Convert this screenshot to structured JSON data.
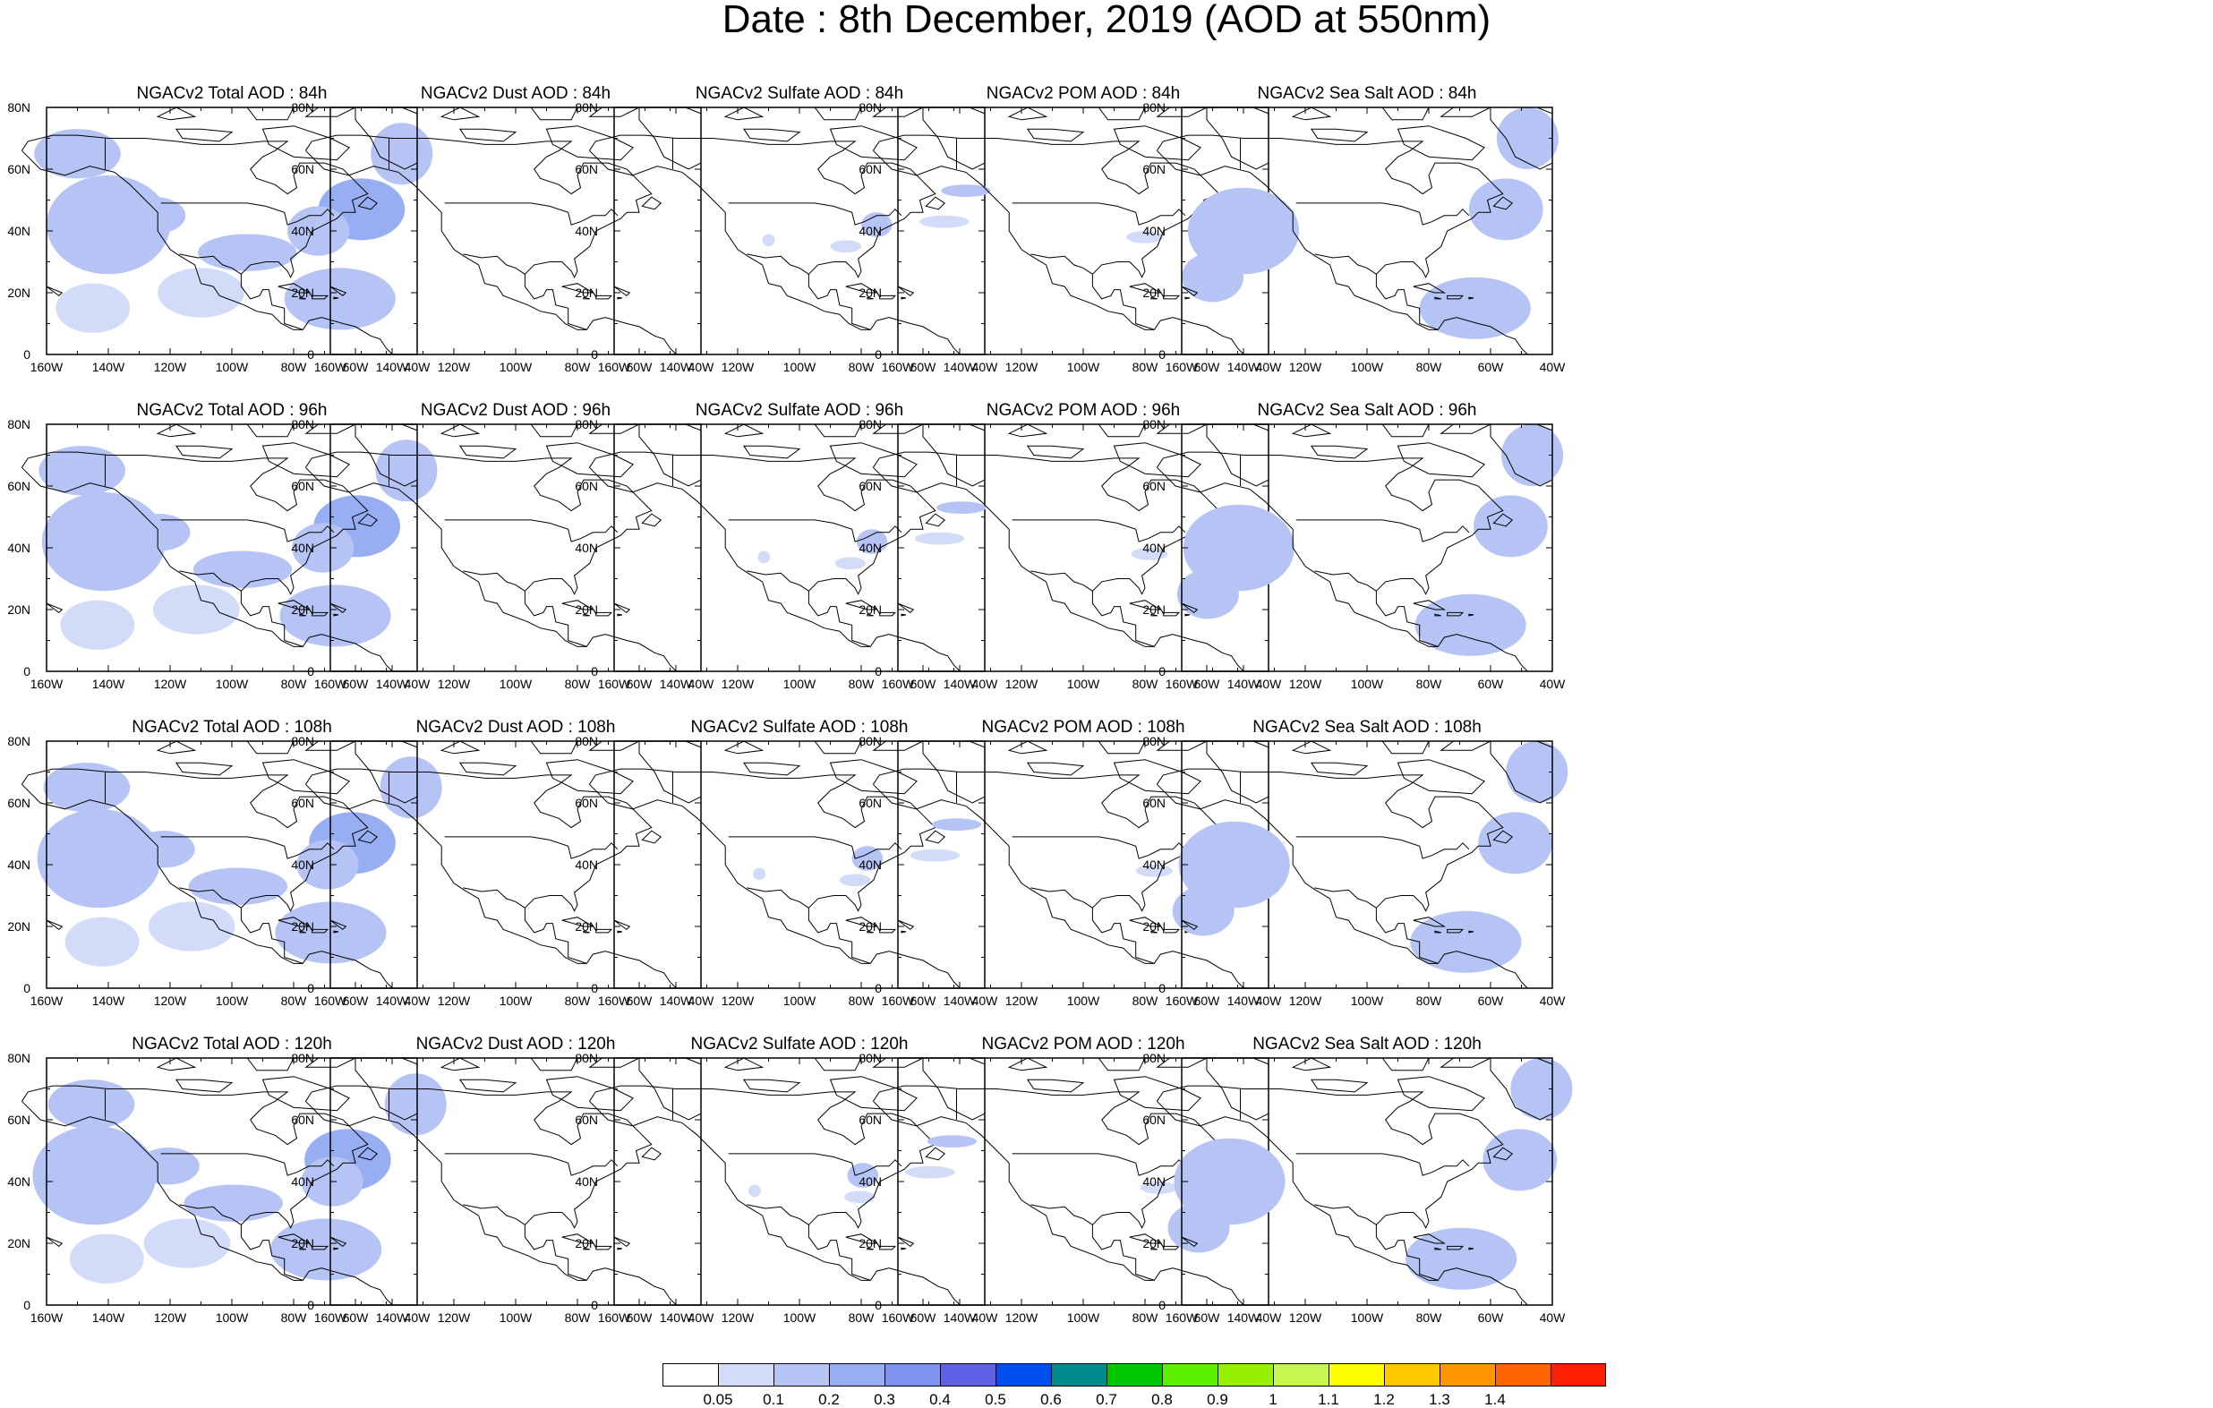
{
  "title": "Date : 8th December, 2019 (AOD at 550nm)",
  "panels": [
    {
      "title": "NGACv2 Total AOD : 84h",
      "species": "total",
      "hour": 84
    },
    {
      "title": "NGACv2 Dust AOD : 84h",
      "species": "dust",
      "hour": 84
    },
    {
      "title": "NGACv2 Sulfate AOD : 84h",
      "species": "sulfate",
      "hour": 84
    },
    {
      "title": "NGACv2 POM AOD : 84h",
      "species": "pom",
      "hour": 84
    },
    {
      "title": "NGACv2 Sea Salt AOD : 84h",
      "species": "seasalt",
      "hour": 84
    },
    {
      "title": "NGACv2 Total AOD : 96h",
      "species": "total",
      "hour": 96
    },
    {
      "title": "NGACv2 Dust AOD : 96h",
      "species": "dust",
      "hour": 96
    },
    {
      "title": "NGACv2 Sulfate AOD : 96h",
      "species": "sulfate",
      "hour": 96
    },
    {
      "title": "NGACv2 POM AOD : 96h",
      "species": "pom",
      "hour": 96
    },
    {
      "title": "NGACv2 Sea Salt AOD : 96h",
      "species": "seasalt",
      "hour": 96
    },
    {
      "title": "NGACv2 Total AOD : 108h",
      "species": "total",
      "hour": 108
    },
    {
      "title": "NGACv2 Dust AOD : 108h",
      "species": "dust",
      "hour": 108
    },
    {
      "title": "NGACv2 Sulfate AOD : 108h",
      "species": "sulfate",
      "hour": 108
    },
    {
      "title": "NGACv2 POM AOD : 108h",
      "species": "pom",
      "hour": 108
    },
    {
      "title": "NGACv2 Sea Salt AOD : 108h",
      "species": "seasalt",
      "hour": 108
    },
    {
      "title": "NGACv2 Total AOD : 120h",
      "species": "total",
      "hour": 120
    },
    {
      "title": "NGACv2 Dust AOD : 120h",
      "species": "dust",
      "hour": 120
    },
    {
      "title": "NGACv2 Sulfate AOD : 120h",
      "species": "sulfate",
      "hour": 120
    },
    {
      "title": "NGACv2 POM AOD : 120h",
      "species": "pom",
      "hour": 120
    },
    {
      "title": "NGACv2 Sea Salt  AOD : 120h",
      "species": "seasalt",
      "hour": 120
    }
  ],
  "axes": {
    "lat_labels": [
      "80N",
      "60N",
      "40N",
      "20N",
      "0"
    ],
    "lon_labels": [
      "160W",
      "140W",
      "120W",
      "100W",
      "80W",
      "60W",
      "40W"
    ],
    "lat_range": [
      0,
      80
    ],
    "lon_range": [
      -160,
      -40
    ]
  },
  "colorbar": {
    "labels": [
      "0.05",
      "0.1",
      "0.2",
      "0.3",
      "0.4",
      "0.5",
      "0.6",
      "0.7",
      "0.8",
      "0.9",
      "1",
      "1.1",
      "1.2",
      "1.3",
      "1.4"
    ],
    "colors": [
      "#ffffff",
      "#d2dcf8",
      "#b5c4f4",
      "#98aef2",
      "#7f93f0",
      "#5f62e6",
      "#0050f0",
      "#008c8c",
      "#00c800",
      "#5af000",
      "#96f000",
      "#c8f550",
      "#ffff00",
      "#ffc800",
      "#ff9600",
      "#ff6400",
      "#ff1e00"
    ]
  },
  "chart_data": {
    "type": "heatmap",
    "title": "Date : 8th December, 2019 (AOD at 550nm)",
    "variable": "AOD at 550nm",
    "lat_range": [
      0,
      80
    ],
    "lon_range": [
      -160,
      -40
    ],
    "species": [
      "Total",
      "Dust",
      "Sulfate",
      "POM",
      "Sea Salt"
    ],
    "forecast_hours": [
      84,
      96,
      108,
      120
    ],
    "levels": [
      0.05,
      0.1,
      0.2,
      0.3,
      0.4,
      0.5,
      0.6,
      0.7,
      0.8,
      0.9,
      1,
      1.1,
      1.2,
      1.3,
      1.4
    ],
    "features": {
      "total": [
        {
          "lon": -140,
          "lat": 42,
          "rx": 20,
          "ry": 16,
          "v": 0.12
        },
        {
          "lon": -125,
          "lat": 45,
          "rx": 10,
          "ry": 6,
          "v": 0.18
        },
        {
          "lon": -58,
          "lat": 47,
          "rx": 14,
          "ry": 10,
          "v": 0.2
        },
        {
          "lon": -72,
          "lat": 40,
          "rx": 10,
          "ry": 8,
          "v": 0.18
        },
        {
          "lon": -65,
          "lat": 18,
          "rx": 18,
          "ry": 10,
          "v": 0.15
        },
        {
          "lon": -150,
          "lat": 65,
          "rx": 14,
          "ry": 8,
          "v": 0.1
        },
        {
          "lon": -95,
          "lat": 33,
          "rx": 16,
          "ry": 6,
          "v": 0.12
        },
        {
          "lon": -45,
          "lat": 65,
          "rx": 10,
          "ry": 10,
          "v": 0.11
        },
        {
          "lon": -110,
          "lat": 20,
          "rx": 14,
          "ry": 8,
          "v": 0.08
        },
        {
          "lon": -145,
          "lat": 15,
          "rx": 12,
          "ry": 8,
          "v": 0.09
        }
      ],
      "dust": [],
      "sulfate": [
        {
          "lon": -75,
          "lat": 42,
          "rx": 5,
          "ry": 4,
          "v": 0.1
        },
        {
          "lon": -85,
          "lat": 35,
          "rx": 5,
          "ry": 2,
          "v": 0.08
        },
        {
          "lon": -110,
          "lat": 37,
          "rx": 2,
          "ry": 2,
          "v": 0.08
        }
      ],
      "pom": [
        {
          "lon": -138,
          "lat": 53,
          "rx": 8,
          "ry": 2,
          "v": 0.1
        },
        {
          "lon": -80,
          "lat": 38,
          "rx": 6,
          "ry": 2,
          "v": 0.09
        },
        {
          "lon": -145,
          "lat": 43,
          "rx": 8,
          "ry": 2,
          "v": 0.07
        }
      ],
      "seasalt": [
        {
          "lon": -140,
          "lat": 40,
          "rx": 18,
          "ry": 14,
          "v": 0.12
        },
        {
          "lon": -55,
          "lat": 47,
          "rx": 12,
          "ry": 10,
          "v": 0.18
        },
        {
          "lon": -65,
          "lat": 15,
          "rx": 18,
          "ry": 10,
          "v": 0.14
        },
        {
          "lon": -48,
          "lat": 70,
          "rx": 10,
          "ry": 10,
          "v": 0.12
        },
        {
          "lon": -150,
          "lat": 25,
          "rx": 10,
          "ry": 8,
          "v": 0.1
        }
      ]
    }
  }
}
